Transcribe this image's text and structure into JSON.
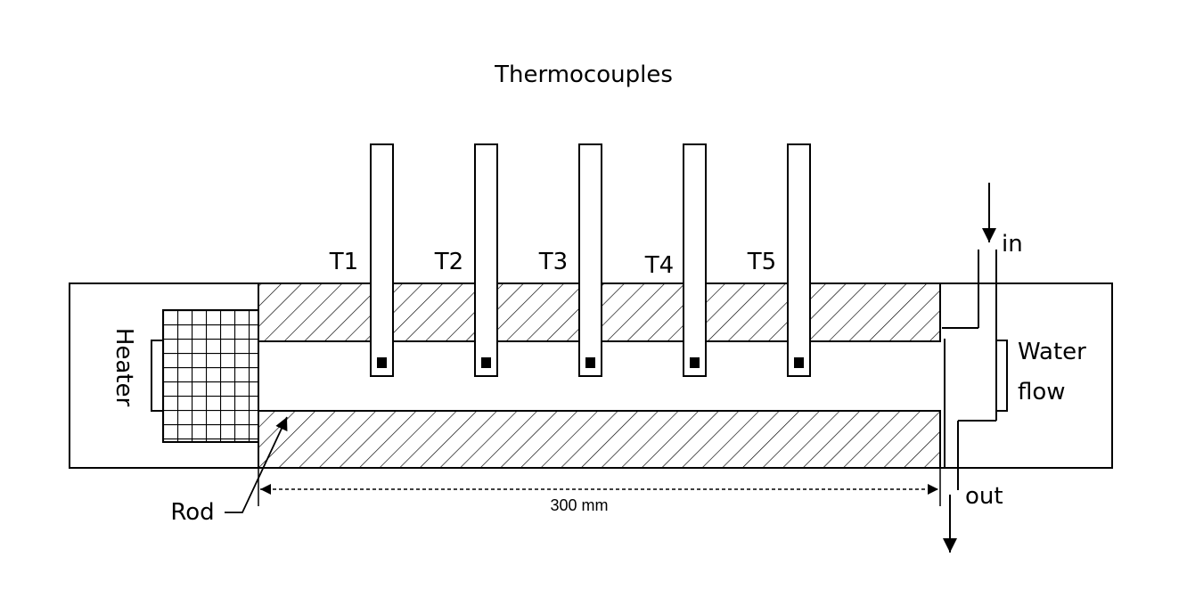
{
  "title": "Thermocouples",
  "thermocouples": [
    {
      "label": "T1"
    },
    {
      "label": "T2"
    },
    {
      "label": "T3"
    },
    {
      "label": "T4"
    },
    {
      "label": "T5"
    }
  ],
  "labels": {
    "heater": "Heater",
    "rod": "Rod",
    "water_line1": "Water",
    "water_line2": "flow",
    "inlet": "in",
    "outlet": "out",
    "dimension": "300 mm"
  }
}
